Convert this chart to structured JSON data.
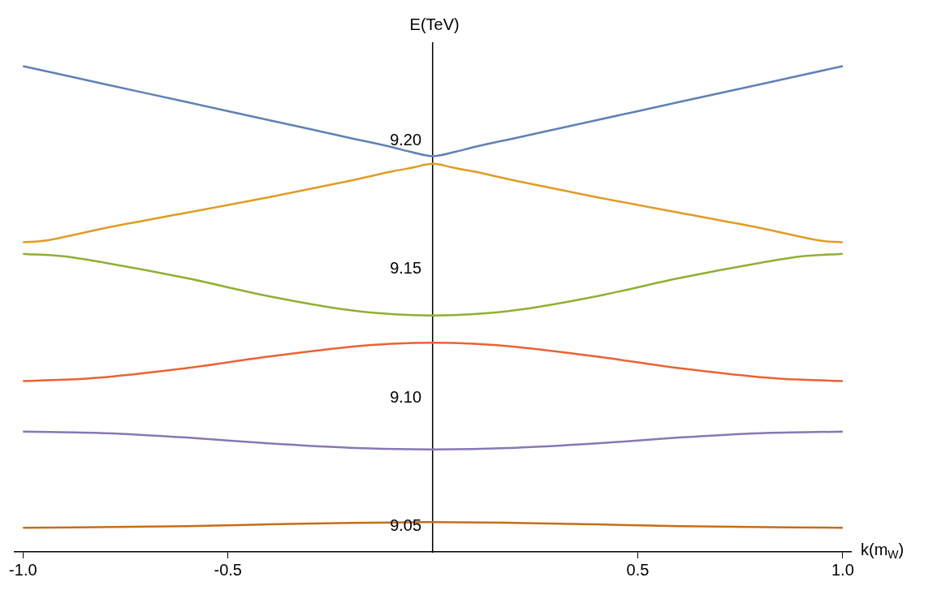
{
  "chart_data": {
    "type": "line",
    "xlabel": "k(m$_{W}$)",
    "ylabel": "E(TeV)",
    "xlim": [
      -1.02,
      1.02
    ],
    "ylim": [
      9.04,
      9.238
    ],
    "xticks": [
      {
        "value": -1,
        "label": "-1.0"
      },
      {
        "value": -0.5,
        "label": "-0.5"
      },
      {
        "value": 0.5,
        "label": "0.5"
      },
      {
        "value": 1,
        "label": "1.0"
      }
    ],
    "yticks": [
      9.05,
      {
        "value": 9.1,
        "label": "9.10"
      },
      9.15,
      {
        "value": 9.2,
        "label": "9.20"
      }
    ],
    "grid": false,
    "legend": false,
    "marker": "none",
    "line_style": "solid",
    "series": [
      {
        "color": "#5e81b5",
        "x": [
          -1,
          -0.8,
          -0.6,
          -0.4,
          -0.2,
          -0.1,
          -0.05,
          0,
          0.05,
          0.1,
          0.2,
          0.4,
          0.6,
          0.8,
          1
        ],
        "values": [
          9.229,
          9.222,
          9.215,
          9.208,
          9.201,
          9.1975,
          9.1955,
          9.194,
          9.1955,
          9.1975,
          9.201,
          9.208,
          9.215,
          9.222,
          9.229
        ]
      },
      {
        "color": "#e19c24",
        "x": [
          -1,
          -0.95,
          -0.9,
          -0.8,
          -0.6,
          -0.4,
          -0.2,
          -0.1,
          -0.05,
          0,
          0.05,
          0.1,
          0.2,
          0.4,
          0.6,
          0.8,
          0.9,
          0.95,
          1
        ],
        "values": [
          9.1605,
          9.161,
          9.1625,
          9.166,
          9.172,
          9.178,
          9.1845,
          9.188,
          9.1895,
          9.191,
          9.1895,
          9.188,
          9.1845,
          9.178,
          9.172,
          9.166,
          9.1625,
          9.161,
          9.1605
        ]
      },
      {
        "color": "#8fb032",
        "x": [
          -1,
          -0.9,
          -0.8,
          -0.6,
          -0.4,
          -0.2,
          -0.1,
          0,
          0.1,
          0.2,
          0.4,
          0.6,
          0.8,
          0.9,
          1
        ],
        "values": [
          9.156,
          9.155,
          9.1525,
          9.1465,
          9.1395,
          9.134,
          9.1325,
          9.132,
          9.1325,
          9.134,
          9.1395,
          9.1465,
          9.1525,
          9.155,
          9.156
        ]
      },
      {
        "color": "#eb6235",
        "x": [
          -1,
          -0.9,
          -0.8,
          -0.6,
          -0.4,
          -0.2,
          -0.1,
          0,
          0.1,
          0.2,
          0.4,
          0.6,
          0.8,
          0.9,
          1
        ],
        "values": [
          9.1065,
          9.107,
          9.108,
          9.1115,
          9.116,
          9.1198,
          9.121,
          9.1214,
          9.121,
          9.1198,
          9.116,
          9.1115,
          9.108,
          9.107,
          9.1065
        ]
      },
      {
        "color": "#8778b3",
        "x": [
          -1,
          -0.8,
          -0.6,
          -0.4,
          -0.2,
          0,
          0.2,
          0.4,
          0.6,
          0.8,
          1
        ],
        "values": [
          9.0868,
          9.0862,
          9.0845,
          9.0822,
          9.0805,
          9.0799,
          9.0805,
          9.0822,
          9.0845,
          9.0862,
          9.0868
        ]
      },
      {
        "color": "#c56e1a",
        "x": [
          -1,
          -0.6,
          -0.4,
          -0.2,
          0,
          0.2,
          0.4,
          0.6,
          1
        ],
        "values": [
          9.0494,
          9.05,
          9.0507,
          9.0513,
          9.0516,
          9.0513,
          9.0507,
          9.05,
          9.0494
        ]
      }
    ]
  }
}
